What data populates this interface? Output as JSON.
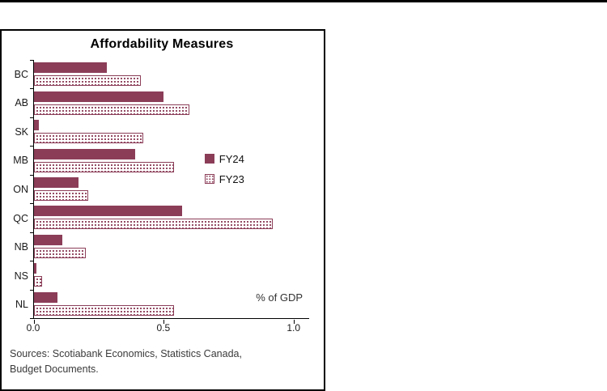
{
  "title": "Affordability Measures",
  "chart_data": {
    "type": "bar",
    "orientation": "horizontal",
    "title": "Affordability Measures",
    "categories": [
      "BC",
      "AB",
      "SK",
      "MB",
      "ON",
      "QC",
      "NB",
      "NS",
      "NL"
    ],
    "series": [
      {
        "name": "FY24",
        "style": "solid",
        "values": [
          0.28,
          0.5,
          0.02,
          0.39,
          0.17,
          0.57,
          0.11,
          0.01,
          0.09
        ]
      },
      {
        "name": "FY23",
        "style": "hatched",
        "values": [
          0.41,
          0.6,
          0.42,
          0.54,
          0.21,
          0.92,
          0.2,
          0.03,
          0.54
        ]
      }
    ],
    "xlabel": "% of GDP",
    "ylabel": "",
    "x_ticks": [
      "0.0",
      "0.5",
      "1.0"
    ],
    "xlim": [
      0,
      1.0
    ],
    "grid": false,
    "legend_position": "inside-middle-right"
  },
  "colors": {
    "bar_primary": "#8b3d58",
    "axis": "#000000",
    "source_text": "#3a3a3a"
  },
  "source": {
    "line1": "Sources: Scotiabank Economics, Statistics Canada,",
    "line2": "Budget Documents."
  }
}
